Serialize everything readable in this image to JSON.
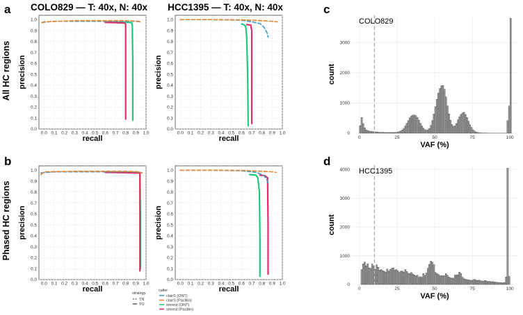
{
  "colors": {
    "clairS_ONT": "#3a9fd0",
    "clairS_PacBio": "#e8862a",
    "smrest_ONT": "#22c77e",
    "smrest_PacBio": "#e02f62",
    "bar_fill": "#9a9a9a",
    "bar_stroke": "#2b2b2b",
    "grid": "#e4e4e4",
    "dashed_line": "#aaaaaa"
  },
  "figure": {
    "letters": {
      "a": "a",
      "b": "b",
      "c": "c",
      "d": "d"
    },
    "col_titles": [
      "COLO829 — T: 40x, N: 40x",
      "HCC1395 — T: 40x, N: 40x"
    ],
    "row_labels": [
      "All HC regions",
      "Phased HC regions"
    ],
    "pr_xlabel": "recall",
    "pr_ylabel": "precision",
    "legend": {
      "strategy_title": "strategy",
      "strategies": [
        "TN",
        "TO"
      ],
      "caller_title": "caller",
      "callers": [
        "clairS (ONT)",
        "clairS (PacBio)",
        "smrest (ONT)",
        "smrest (PacBio)"
      ]
    }
  },
  "chart_data": [
    {
      "id": "a1",
      "type": "line",
      "xlabel": "recall",
      "ylabel": "precision",
      "xlim": [
        -0.05,
        1.0
      ],
      "ylim": [
        0,
        1.04
      ],
      "xticks": [
        "0.0",
        "0.1",
        "0.2",
        "0.3",
        "0.4",
        "0.5",
        "0.6",
        "0.7",
        "0.8",
        "0.9",
        "1.0"
      ],
      "yticks": [
        "0.0",
        "0.1",
        "0.2",
        "0.3",
        "0.4",
        "0.5",
        "0.6",
        "0.7",
        "0.8",
        "0.9",
        "1.0"
      ],
      "series": [
        {
          "name": "smrest (ONT)",
          "color_key": "smrest_ONT",
          "dash": false,
          "points": [
            [
              0.6,
              0.98
            ],
            [
              0.84,
              0.975
            ],
            [
              0.86,
              0.97
            ],
            [
              0.865,
              0.95
            ],
            [
              0.87,
              0.6
            ],
            [
              0.87,
              0.08
            ]
          ]
        },
        {
          "name": "smrest (PacBio)",
          "color_key": "smrest_PacBio",
          "dash": false,
          "points": [
            [
              0.6,
              0.975
            ],
            [
              0.785,
              0.97
            ],
            [
              0.8,
              0.96
            ],
            [
              0.8,
              0.5
            ],
            [
              0.8,
              0.09
            ]
          ]
        },
        {
          "name": "clairS (ONT)",
          "color_key": "clairS_ONT",
          "dash": true,
          "points": [
            [
              -0.02,
              0.975
            ],
            [
              0.1,
              0.985
            ],
            [
              0.5,
              0.985
            ],
            [
              0.9,
              0.985
            ],
            [
              0.94,
              0.98
            ],
            [
              0.95,
              0.975
            ]
          ]
        },
        {
          "name": "clairS (PacBio)",
          "color_key": "clairS_PacBio",
          "dash": true,
          "points": [
            [
              -0.02,
              0.97
            ],
            [
              0.0,
              0.98
            ],
            [
              0.3,
              0.99
            ],
            [
              0.8,
              0.99
            ],
            [
              0.93,
              0.985
            ],
            [
              0.95,
              0.975
            ]
          ]
        }
      ]
    },
    {
      "id": "a2",
      "type": "line",
      "xlabel": "recall",
      "ylabel": "precision",
      "xlim": [
        -0.05,
        1.0
      ],
      "ylim": [
        0,
        1.04
      ],
      "xticks": [
        "0.0",
        "0.1",
        "0.2",
        "0.3",
        "0.4",
        "0.5",
        "0.6",
        "0.7",
        "0.8",
        "0.9",
        "1.0"
      ],
      "yticks": [
        "0.0",
        "0.1",
        "0.2",
        "0.3",
        "0.4",
        "0.5",
        "0.6",
        "0.7",
        "0.8",
        "0.9",
        "1.0"
      ],
      "series": [
        {
          "name": "smrest (ONT)",
          "color_key": "smrest_ONT",
          "dash": false,
          "points": [
            [
              0.6,
              0.96
            ],
            [
              0.62,
              0.955
            ],
            [
              0.64,
              0.94
            ],
            [
              0.65,
              0.85
            ],
            [
              0.66,
              0.5
            ],
            [
              0.665,
              0.03
            ]
          ]
        },
        {
          "name": "smrest (PacBio)",
          "color_key": "smrest_PacBio",
          "dash": false,
          "points": [
            [
              0.65,
              0.955
            ],
            [
              0.69,
              0.95
            ],
            [
              0.7,
              0.9
            ],
            [
              0.7,
              0.5
            ],
            [
              0.7,
              0.05
            ]
          ]
        },
        {
          "name": "clairS (ONT)",
          "color_key": "clairS_ONT",
          "dash": true,
          "points": [
            [
              0.0,
              1.0
            ],
            [
              0.3,
              1.0
            ],
            [
              0.6,
              0.995
            ],
            [
              0.7,
              0.98
            ],
            [
              0.78,
              0.965
            ],
            [
              0.82,
              0.93
            ],
            [
              0.85,
              0.88
            ],
            [
              0.86,
              0.84
            ]
          ]
        },
        {
          "name": "clairS (PacBio)",
          "color_key": "clairS_PacBio",
          "dash": true,
          "points": [
            [
              0.0,
              1.0
            ],
            [
              0.3,
              1.0
            ],
            [
              0.6,
              0.998
            ],
            [
              0.8,
              0.99
            ],
            [
              0.9,
              0.985
            ],
            [
              0.95,
              0.98
            ]
          ]
        }
      ]
    },
    {
      "id": "b1",
      "type": "line",
      "xlabel": "recall",
      "ylabel": "precision",
      "xlim": [
        -0.05,
        1.0
      ],
      "ylim": [
        0,
        1.04
      ],
      "xticks": [
        "0.0",
        "0.1",
        "0.2",
        "0.3",
        "0.4",
        "0.5",
        "0.6",
        "0.7",
        "0.8",
        "0.9",
        "1.0"
      ],
      "yticks": [
        "0.0",
        "0.1",
        "0.2",
        "0.3",
        "0.4",
        "0.5",
        "0.6",
        "0.7",
        "0.8",
        "0.9",
        "1.0"
      ],
      "series": [
        {
          "name": "smrest (ONT)",
          "color_key": "smrest_ONT",
          "dash": false,
          "points": [
            [
              0.6,
              0.985
            ],
            [
              0.93,
              0.98
            ],
            [
              0.94,
              0.975
            ],
            [
              0.945,
              0.6
            ],
            [
              0.945,
              0.1
            ]
          ]
        },
        {
          "name": "smrest (PacBio)",
          "color_key": "smrest_PacBio",
          "dash": false,
          "points": [
            [
              0.6,
              0.98
            ],
            [
              0.935,
              0.975
            ],
            [
              0.94,
              0.97
            ],
            [
              0.94,
              0.5
            ],
            [
              0.94,
              0.08
            ]
          ]
        },
        {
          "name": "clairS (ONT)",
          "color_key": "clairS_ONT",
          "dash": true,
          "points": [
            [
              -0.03,
              0.975
            ],
            [
              0.1,
              0.985
            ],
            [
              0.5,
              0.985
            ],
            [
              0.9,
              0.985
            ],
            [
              0.95,
              0.98
            ],
            [
              0.96,
              0.975
            ]
          ]
        },
        {
          "name": "clairS (PacBio)",
          "color_key": "clairS_PacBio",
          "dash": true,
          "points": [
            [
              -0.03,
              0.96
            ],
            [
              0.0,
              0.985
            ],
            [
              0.3,
              0.99
            ],
            [
              0.8,
              0.99
            ],
            [
              0.93,
              0.985
            ],
            [
              0.96,
              0.975
            ]
          ]
        }
      ]
    },
    {
      "id": "b2",
      "type": "line",
      "xlabel": "recall",
      "ylabel": "precision",
      "xlim": [
        -0.05,
        1.0
      ],
      "ylim": [
        0,
        1.04
      ],
      "xticks": [
        "0.0",
        "0.1",
        "0.2",
        "0.3",
        "0.4",
        "0.5",
        "0.6",
        "0.7",
        "0.8",
        "0.9",
        "1.0"
      ],
      "yticks": [
        "0.0",
        "0.1",
        "0.2",
        "0.3",
        "0.4",
        "0.5",
        "0.6",
        "0.7",
        "0.8",
        "0.9",
        "1.0"
      ],
      "series": [
        {
          "name": "smrest (ONT)",
          "color_key": "smrest_ONT",
          "dash": false,
          "points": [
            [
              0.68,
              0.96
            ],
            [
              0.74,
              0.955
            ],
            [
              0.76,
              0.93
            ],
            [
              0.775,
              0.8
            ],
            [
              0.78,
              0.4
            ],
            [
              0.78,
              0.03
            ]
          ]
        },
        {
          "name": "smrest (PacBio)",
          "color_key": "smrest_PacBio",
          "dash": false,
          "points": [
            [
              0.78,
              0.955
            ],
            [
              0.83,
              0.95
            ],
            [
              0.855,
              0.93
            ],
            [
              0.86,
              0.5
            ],
            [
              0.86,
              0.05
            ]
          ]
        },
        {
          "name": "clairS (ONT)",
          "color_key": "clairS_ONT",
          "dash": true,
          "points": [
            [
              0.0,
              1.0
            ],
            [
              0.3,
              1.0
            ],
            [
              0.6,
              0.995
            ],
            [
              0.75,
              0.98
            ],
            [
              0.82,
              0.95
            ],
            [
              0.85,
              0.91
            ],
            [
              0.86,
              0.88
            ]
          ]
        },
        {
          "name": "clairS (PacBio)",
          "color_key": "clairS_PacBio",
          "dash": true,
          "points": [
            [
              0.0,
              1.0
            ],
            [
              0.3,
              1.0
            ],
            [
              0.6,
              0.998
            ],
            [
              0.8,
              0.99
            ],
            [
              0.9,
              0.985
            ],
            [
              0.94,
              0.98
            ]
          ]
        }
      ]
    },
    {
      "id": "c",
      "type": "bar",
      "title": "COLO829",
      "xlabel": "VAF (%)",
      "ylabel": "count",
      "xlim": [
        -5,
        105
      ],
      "ylim": [
        0,
        3900
      ],
      "xticks": [
        "0",
        "25",
        "50",
        "75",
        "100"
      ],
      "yticks": [
        "0",
        "1000",
        "2000",
        "3000"
      ],
      "dashed_x": 10,
      "bin_start": 0,
      "bin_width": 1,
      "values": [
        250,
        520,
        320,
        180,
        110,
        90,
        70,
        60,
        55,
        50,
        45,
        40,
        35,
        30,
        30,
        28,
        26,
        25,
        24,
        24,
        24,
        24,
        25,
        26,
        30,
        40,
        55,
        75,
        110,
        160,
        240,
        330,
        420,
        510,
        570,
        600,
        600,
        580,
        520,
        430,
        330,
        240,
        170,
        120,
        100,
        110,
        160,
        260,
        420,
        640,
        880,
        1120,
        1330,
        1480,
        1570,
        1580,
        1450,
        1200,
        900,
        640,
        430,
        290,
        230,
        250,
        320,
        440,
        540,
        620,
        670,
        690,
        620,
        520,
        400,
        280,
        190,
        110,
        70,
        40,
        25,
        15,
        10,
        8,
        6,
        5,
        4,
        3,
        3,
        2,
        2,
        2,
        2,
        2,
        2,
        2,
        2,
        2,
        2,
        2,
        420,
        900,
        3800
      ]
    },
    {
      "id": "d",
      "type": "bar",
      "title": "HCC1395",
      "xlabel": "VAF (%)",
      "ylabel": "count",
      "xlim": [
        -5,
        105
      ],
      "ylim": [
        0,
        4150
      ],
      "xticks": [
        "0",
        "25",
        "50",
        "75",
        "100"
      ],
      "yticks": [
        "0",
        "1000",
        "2000",
        "3000",
        "4000"
      ],
      "dashed_x": 10,
      "bin_start": 1,
      "bin_width": 1,
      "values": [
        520,
        720,
        780,
        650,
        720,
        580,
        560,
        710,
        640,
        520,
        680,
        600,
        500,
        520,
        480,
        460,
        430,
        540,
        470,
        520,
        560,
        580,
        500,
        520,
        480,
        420,
        460,
        470,
        430,
        520,
        450,
        390,
        380,
        420,
        360,
        330,
        300,
        320,
        250,
        270,
        250,
        380,
        320,
        400,
        560,
        700,
        810,
        780,
        690,
        420,
        380,
        350,
        300,
        310,
        300,
        310,
        380,
        320,
        260,
        230,
        220,
        220,
        320,
        330,
        340,
        430,
        380,
        250,
        200,
        180,
        170,
        160,
        150,
        140,
        160,
        180,
        150,
        140,
        150,
        130,
        120,
        110,
        140,
        120,
        100,
        110,
        90,
        100,
        90,
        80,
        80,
        70,
        70,
        60,
        60,
        70,
        260,
        4050,
        280
      ]
    }
  ]
}
